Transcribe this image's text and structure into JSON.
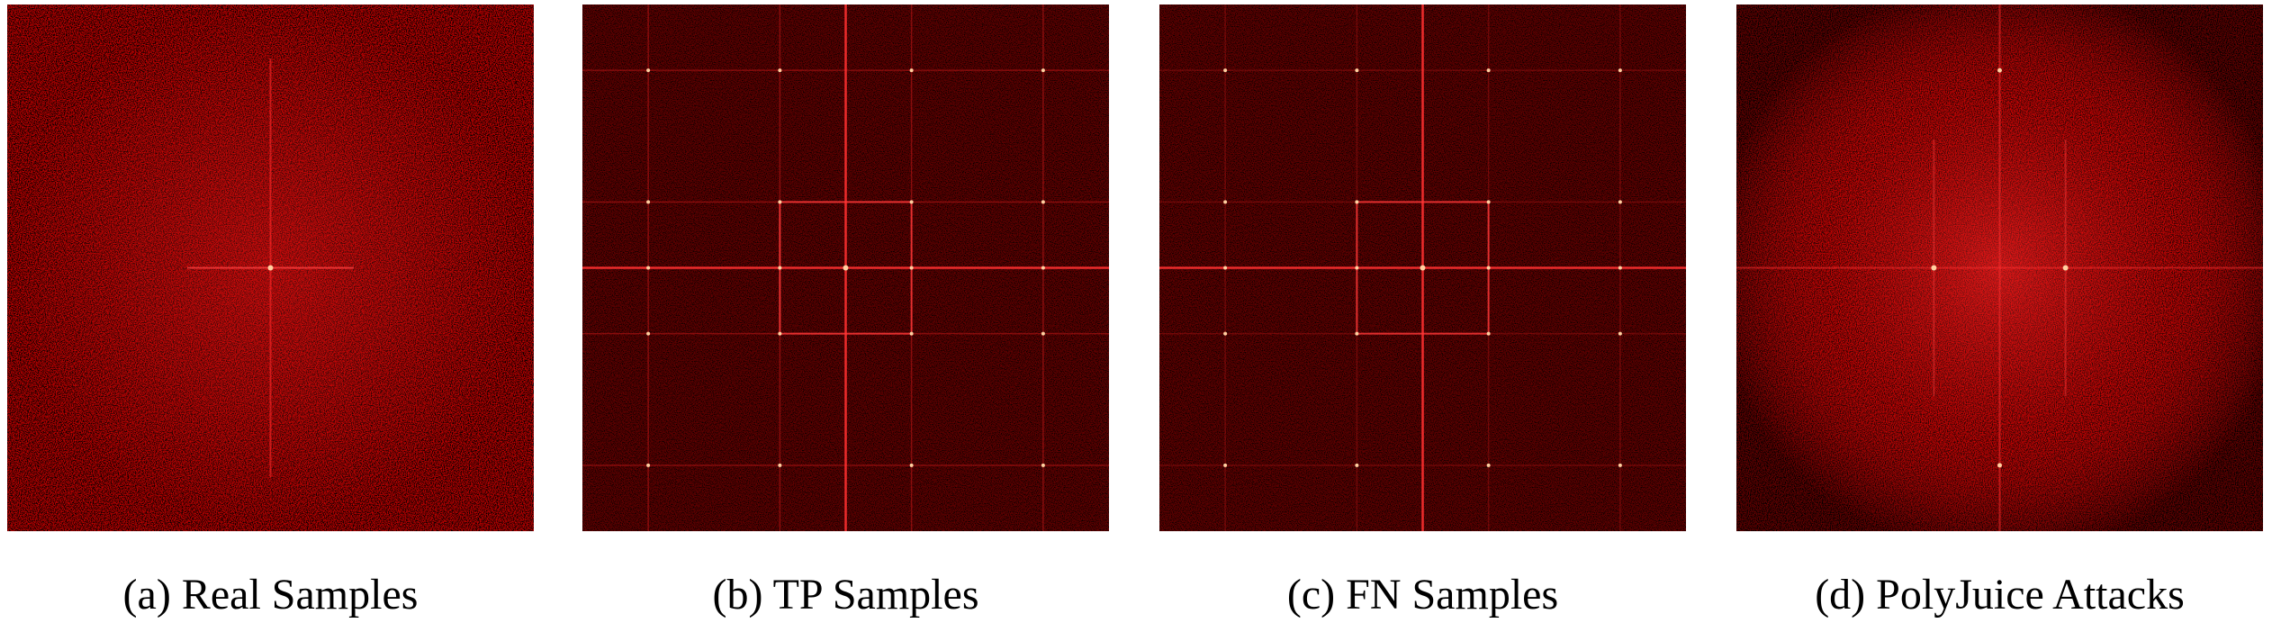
{
  "figure": {
    "panels": [
      {
        "caption": "(a) Real Samples"
      },
      {
        "caption": "(b) TP Samples"
      },
      {
        "caption": "(c) FN Samples"
      },
      {
        "caption": "(d) PolyJuice Attacks"
      }
    ]
  }
}
